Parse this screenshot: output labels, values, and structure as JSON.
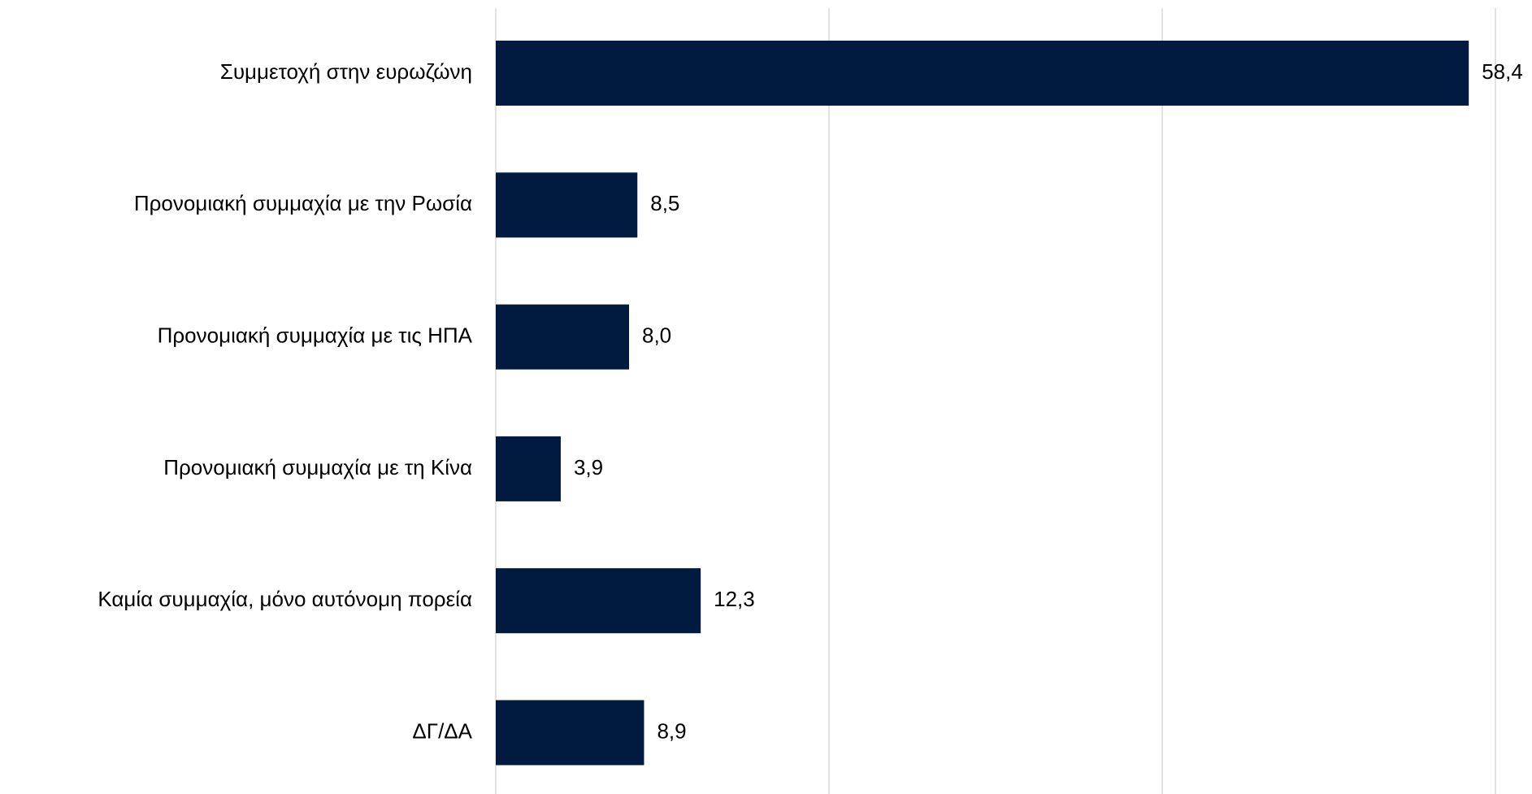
{
  "chart_data": {
    "type": "bar",
    "orientation": "horizontal",
    "categories": [
      "Συμμετοχή στην ευρωζώνη",
      "Προνομιακή συμμαχία με την Ρωσία",
      "Προνομιακή συμμαχία με τις ΗΠΑ",
      "Προνομιακή συμμαχία με τη Κίνα",
      "Καμία συμμαχία, μόνο αυτόνομη πορεία",
      "ΔΓ/ΔΑ"
    ],
    "values": [
      58.4,
      8.5,
      8.0,
      3.9,
      12.3,
      8.9
    ],
    "value_labels": [
      "58,4",
      "8,5",
      "8,0",
      "3,9",
      "12,3",
      "8,9"
    ],
    "color": "#001a40",
    "xlim": [
      0,
      60
    ],
    "xticks": [
      0,
      20,
      40,
      60
    ],
    "grid": true
  }
}
